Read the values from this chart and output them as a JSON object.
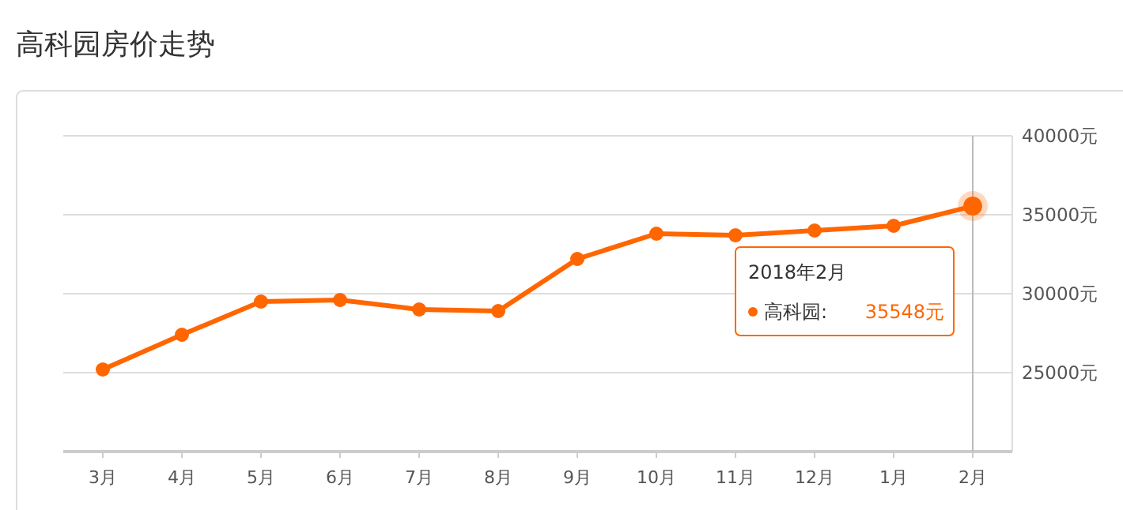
{
  "chart_data": {
    "type": "line",
    "title": "高科园房价走势",
    "categories": [
      "3月",
      "4月",
      "5月",
      "6月",
      "7月",
      "8月",
      "9月",
      "10月",
      "11月",
      "12月",
      "1月",
      "2月"
    ],
    "series": [
      {
        "color": "#ff6600",
        "values": [
          25200,
          27400,
          29500,
          29600,
          29000,
          28900,
          32200,
          33800,
          33700,
          34000,
          34300,
          35548
        ]
      }
    ],
    "ylim": [
      20000,
      40000
    ],
    "yticks": [
      {
        "value": 20000,
        "label": null
      },
      {
        "value": 25000,
        "label": "25000元"
      },
      {
        "value": 30000,
        "label": "30000元"
      },
      {
        "value": 35000,
        "label": "35000元"
      },
      {
        "value": 40000,
        "label": "40000元"
      }
    ],
    "grid": "y",
    "marker": "circle",
    "line_style": "solid",
    "ref_lines": [
      {
        "axis": "x",
        "value": "2月",
        "color": "#bbbbbb"
      }
    ],
    "annotations": [
      "2018年2月",
      "高科园:",
      "35548元"
    ]
  }
}
